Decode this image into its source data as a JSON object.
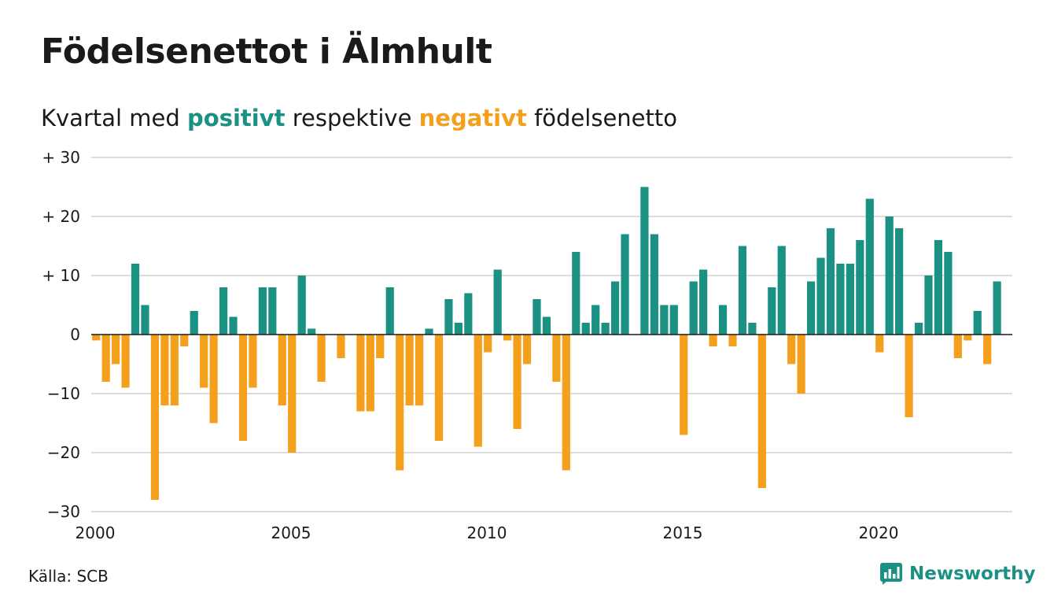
{
  "header": {
    "title": "Födelsenettot i Älmhult",
    "subtitle_prefix": "Kvartal med",
    "subtitle_positive": "positivt",
    "subtitle_middle": "respektive",
    "subtitle_negative": "negativt",
    "subtitle_suffix": "födelsenetto"
  },
  "footer": {
    "source": "Källa: SCB",
    "brand": "Newsworthy"
  },
  "colors": {
    "positive": "#1a9183",
    "negative": "#f5a01c",
    "grid": "#dcdcdc",
    "axis": "#1a1a1a"
  },
  "chart_data": {
    "type": "bar",
    "start_year": 2000,
    "start_quarter": 1,
    "quarters_per_year": 4,
    "values": [
      -1,
      -8,
      -5,
      -9,
      12,
      5,
      -28,
      -12,
      -12,
      -2,
      4,
      -9,
      -15,
      8,
      3,
      -18,
      -9,
      8,
      8,
      -12,
      -20,
      10,
      1,
      -8,
      0,
      -4,
      0,
      -13,
      -13,
      -4,
      8,
      -23,
      -12,
      -12,
      1,
      -18,
      6,
      2,
      7,
      -19,
      -3,
      11,
      -1,
      -16,
      -5,
      6,
      3,
      -8,
      -23,
      14,
      2,
      5,
      2,
      9,
      17,
      0,
      25,
      17,
      5,
      5,
      -17,
      9,
      11,
      -2,
      5,
      -2,
      15,
      2,
      -26,
      8,
      15,
      -5,
      -10,
      9,
      13,
      18,
      12,
      12,
      16,
      23,
      -3,
      20,
      18,
      -14,
      2,
      10,
      16,
      14,
      -4,
      -1,
      4,
      -5,
      9
    ],
    "ylim": [
      -30,
      30
    ],
    "yticks": [
      30,
      20,
      10,
      0,
      -10,
      -20,
      -30
    ],
    "ytick_labels": [
      "+ 30",
      "+ 20",
      "+ 10",
      "0",
      "−10",
      "−20",
      "−30"
    ],
    "xticks": [
      "2000",
      "2005",
      "2010",
      "2015",
      "2020"
    ],
    "grid": true,
    "legend": "none"
  }
}
